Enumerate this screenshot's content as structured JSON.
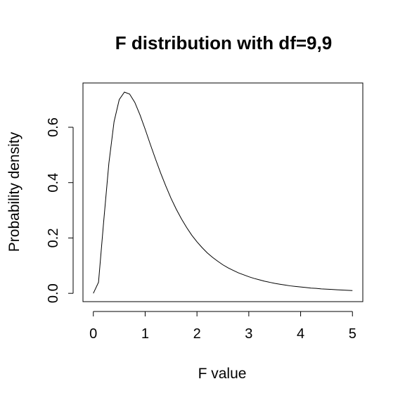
{
  "chart_data": {
    "type": "line",
    "title": "F distribution with df=9,9",
    "xlabel": "F value",
    "ylabel": "Probability density",
    "xlim": [
      -0.2,
      5.2
    ],
    "ylim": [
      -0.03,
      0.76
    ],
    "xticks": [
      0,
      1,
      2,
      3,
      4,
      5
    ],
    "xtick_labels": [
      "0",
      "1",
      "2",
      "3",
      "4",
      "5"
    ],
    "yticks": [
      0.0,
      0.2,
      0.4,
      0.6
    ],
    "ytick_labels": [
      "0.0",
      "0.2",
      "0.4",
      "0.6"
    ],
    "grid": false,
    "legend": "none",
    "line_color": "#000000",
    "series": [
      {
        "x": [
          0.0,
          0.1,
          0.2,
          0.3,
          0.4,
          0.5,
          0.6,
          0.7,
          0.8,
          0.9,
          1.0,
          1.1,
          1.2,
          1.3,
          1.4,
          1.5,
          1.6,
          1.7,
          1.8,
          1.9,
          2.0,
          2.1,
          2.2,
          2.3,
          2.4,
          2.5,
          2.6,
          2.7,
          2.8,
          2.9,
          3.0,
          3.1,
          3.2,
          3.3,
          3.4,
          3.5,
          3.6,
          3.7,
          3.8,
          3.9,
          4.0,
          4.1,
          4.2,
          4.3,
          4.4,
          4.5,
          4.6,
          4.7,
          4.8,
          4.9,
          5.0
        ],
        "y": [
          0.0,
          0.04,
          0.26,
          0.47,
          0.62,
          0.7,
          0.727,
          0.72,
          0.69,
          0.645,
          0.593,
          0.538,
          0.485,
          0.434,
          0.387,
          0.343,
          0.304,
          0.269,
          0.238,
          0.21,
          0.186,
          0.165,
          0.146,
          0.13,
          0.116,
          0.103,
          0.092,
          0.083,
          0.074,
          0.067,
          0.06,
          0.054,
          0.049,
          0.044,
          0.04,
          0.036,
          0.033,
          0.03,
          0.027,
          0.025,
          0.023,
          0.021,
          0.019,
          0.018,
          0.016,
          0.015,
          0.014,
          0.013,
          0.012,
          0.011,
          0.01
        ]
      }
    ]
  }
}
